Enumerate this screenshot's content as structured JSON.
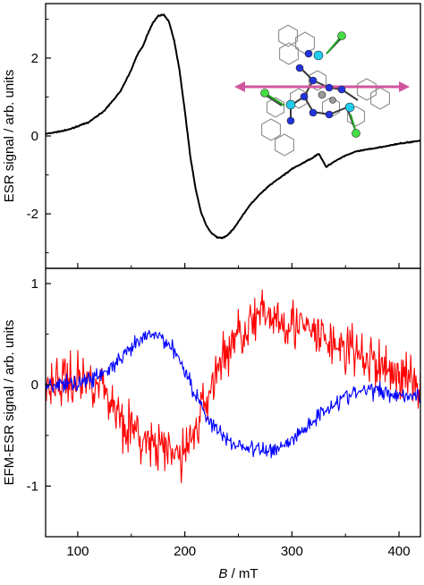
{
  "chart_data": [
    {
      "type": "line",
      "panel": "top",
      "xlabel": "",
      "ylabel": "ESR signal / arb. units",
      "xlim": [
        70,
        420
      ],
      "ylim": [
        -3.4,
        3.4
      ],
      "yticks": [
        -2,
        0,
        2
      ],
      "ytick_labels": [
        "-2",
        "0",
        "2"
      ],
      "grid": false,
      "inset": "molecular structure with magenta double-headed arrow, top-right",
      "series": [
        {
          "color": "#000000",
          "x": [
            70,
            90,
            110,
            125,
            140,
            150,
            155,
            158,
            161,
            165,
            170,
            175,
            180,
            185,
            190,
            195,
            200,
            205,
            210,
            215,
            220,
            225,
            230,
            235,
            240,
            245,
            250,
            255,
            260,
            270,
            280,
            290,
            300,
            310,
            320,
            325,
            328,
            332,
            336,
            340,
            350,
            360,
            380,
            400,
            420
          ],
          "y": [
            0.05,
            0.15,
            0.35,
            0.65,
            1.15,
            1.7,
            2.05,
            2.2,
            2.3,
            2.6,
            2.9,
            3.08,
            3.12,
            2.95,
            2.45,
            1.7,
            0.65,
            -0.5,
            -1.35,
            -1.95,
            -2.3,
            -2.5,
            -2.6,
            -2.62,
            -2.55,
            -2.4,
            -2.2,
            -2.0,
            -1.8,
            -1.5,
            -1.25,
            -1.05,
            -0.85,
            -0.7,
            -0.55,
            -0.45,
            -0.6,
            -0.8,
            -0.72,
            -0.65,
            -0.5,
            -0.4,
            -0.3,
            -0.2,
            -0.12
          ]
        }
      ]
    },
    {
      "type": "line",
      "panel": "bottom",
      "xlabel": "B / mT",
      "ylabel": "EFM-ESR signal / arb. units",
      "xlim": [
        70,
        420
      ],
      "ylim": [
        -1.5,
        1.15
      ],
      "xticks": [
        100,
        200,
        300,
        400
      ],
      "xtick_labels": [
        "100",
        "200",
        "300",
        "400"
      ],
      "yticks": [
        -1,
        0,
        1
      ],
      "ytick_labels": [
        "-1",
        "0",
        "1"
      ],
      "grid": false,
      "series": [
        {
          "color": "#ff0000",
          "noise": 0.25,
          "x": [
            70,
            90,
            110,
            120,
            130,
            140,
            150,
            160,
            170,
            180,
            190,
            200,
            210,
            220,
            230,
            240,
            250,
            260,
            270,
            280,
            290,
            300,
            310,
            320,
            330,
            340,
            350,
            360,
            370,
            380,
            390,
            400,
            410,
            420
          ],
          "y": [
            0.0,
            0.05,
            0.05,
            0.05,
            -0.15,
            -0.3,
            -0.45,
            -0.55,
            -0.6,
            -0.65,
            -0.7,
            -0.65,
            -0.45,
            -0.15,
            0.15,
            0.35,
            0.5,
            0.6,
            0.65,
            0.7,
            0.65,
            0.62,
            0.55,
            0.5,
            0.45,
            0.4,
            0.35,
            0.3,
            0.25,
            0.2,
            0.15,
            0.1,
            0.05,
            0.0
          ]
        },
        {
          "color": "#0000ff",
          "noise": 0.08,
          "x": [
            70,
            90,
            110,
            120,
            130,
            140,
            150,
            160,
            170,
            180,
            190,
            200,
            210,
            220,
            230,
            240,
            250,
            260,
            270,
            280,
            290,
            300,
            310,
            320,
            330,
            340,
            350,
            360,
            370,
            380,
            390,
            400,
            410,
            420
          ],
          "y": [
            0.0,
            0.0,
            0.05,
            0.1,
            0.15,
            0.25,
            0.35,
            0.45,
            0.5,
            0.45,
            0.35,
            0.15,
            -0.1,
            -0.3,
            -0.45,
            -0.55,
            -0.6,
            -0.62,
            -0.65,
            -0.65,
            -0.6,
            -0.55,
            -0.45,
            -0.35,
            -0.25,
            -0.18,
            -0.12,
            -0.08,
            -0.05,
            -0.05,
            -0.08,
            -0.1,
            -0.1,
            -0.1
          ]
        }
      ]
    }
  ]
}
